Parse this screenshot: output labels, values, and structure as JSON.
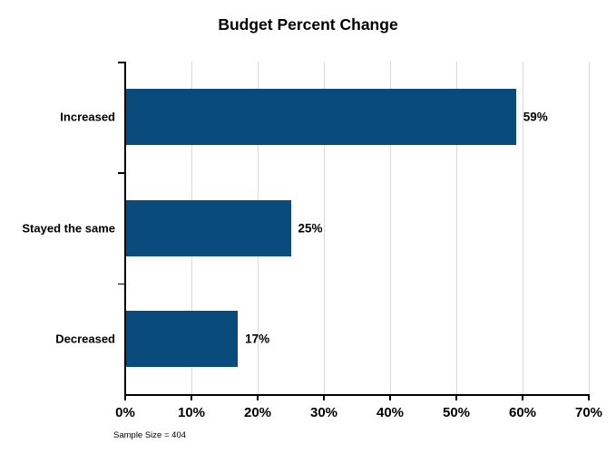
{
  "colors": {
    "bar": "#0A4B7D",
    "gridline": "#D9D9D9",
    "axis": "#000000",
    "background": "#FFFFFF",
    "text": "#000000"
  },
  "chart_data": {
    "type": "bar",
    "orientation": "horizontal",
    "title": "Budget Percent Change",
    "categories": [
      "Increased",
      "Stayed the same",
      "Decreased"
    ],
    "values": [
      59,
      25,
      17
    ],
    "value_labels": [
      "59%",
      "25%",
      "17%"
    ],
    "xlabel": "",
    "ylabel": "",
    "xlim": [
      0,
      70
    ],
    "xtick_values": [
      0,
      10,
      20,
      30,
      40,
      50,
      60,
      70
    ],
    "xtick_labels": [
      "0%",
      "10%",
      "20%",
      "30%",
      "40%",
      "50%",
      "60%",
      "70%"
    ],
    "grid": true,
    "legend": false,
    "annotation": "Sample Size = 404"
  }
}
